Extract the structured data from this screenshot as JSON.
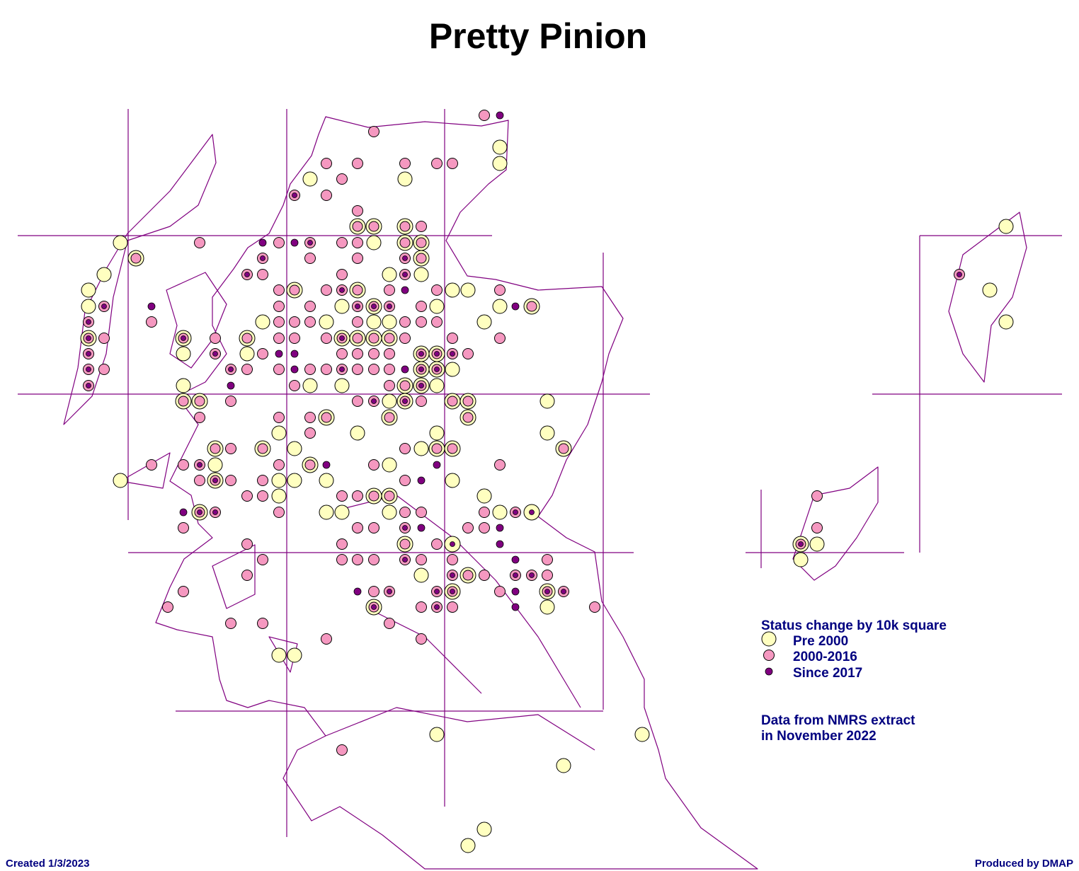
{
  "header": {
    "title": "Pretty Pinion"
  },
  "legend": {
    "title": "Status change by 10k square",
    "items": [
      "Pre 2000",
      "2000-2016",
      "Since 2017"
    ]
  },
  "note": [
    "Data from NMRS extract",
    "in November 2022"
  ],
  "footer": {
    "left": "Created 1/3/2023",
    "right": "Produced by DMAP"
  }
}
